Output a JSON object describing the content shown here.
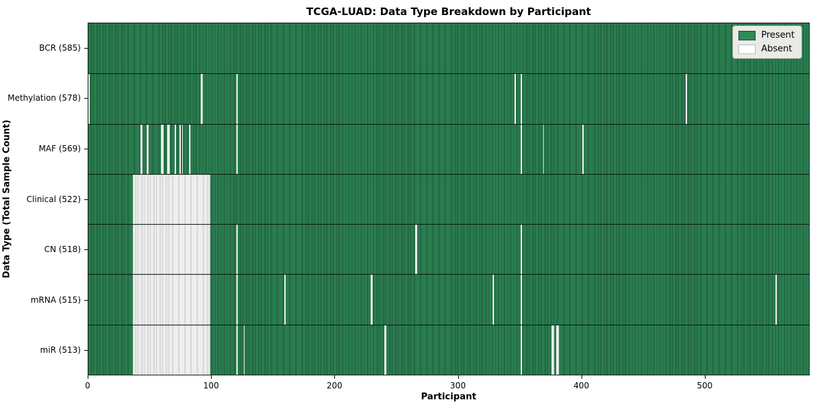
{
  "figure": {
    "title": "TCGA-LUAD: Data Type Breakdown by Participant",
    "xlabel": "Participant",
    "ylabel": "Data Type (Total Sample Count)"
  },
  "legend": {
    "items": [
      {
        "label": "Present",
        "color": "#2e8b57",
        "edge": "#1c4f36"
      },
      {
        "label": "Absent",
        "color": "#ffffff",
        "edge": "#bcbcbc"
      }
    ]
  },
  "chart_data": {
    "type": "heatmap",
    "title": "TCGA-LUAD: Data Type Breakdown by Participant",
    "xlabel": "Participant",
    "ylabel": "Data Type (Total Sample Count)",
    "legend_position": "upper right",
    "x_ticks": [
      0,
      100,
      200,
      300,
      400,
      500
    ],
    "xlim": [
      0,
      585
    ],
    "n_participants": 585,
    "colors": {
      "present_fill": "#2e8b57",
      "present_edge": "#1c4f36",
      "absent_fill": "#ffffff",
      "absent_edge": "#bcbcbc",
      "row_divider": "#000000"
    },
    "rows": [
      {
        "label": "BCR (585)",
        "data_type": "BCR",
        "present_count": 585,
        "absent_count": 0,
        "absent_ranges": []
      },
      {
        "label": "Methylation (578)",
        "data_type": "Methylation",
        "present_count": 578,
        "absent_count": 7,
        "absent_ranges": [
          [
            0,
            1
          ],
          [
            91,
            2
          ],
          [
            120,
            1
          ],
          [
            346,
            1
          ],
          [
            351,
            1
          ],
          [
            485,
            1
          ]
        ]
      },
      {
        "label": "MAF (569)",
        "data_type": "MAF",
        "present_count": 569,
        "absent_count": 16,
        "absent_ranges": [
          [
            42,
            2
          ],
          [
            47,
            2
          ],
          [
            59,
            2
          ],
          [
            64,
            2
          ],
          [
            70,
            1
          ],
          [
            74,
            1
          ],
          [
            76,
            1
          ],
          [
            82,
            1
          ],
          [
            120,
            1
          ],
          [
            351,
            1
          ],
          [
            369,
            1
          ],
          [
            401,
            1
          ]
        ]
      },
      {
        "label": "Clinical (522)",
        "data_type": "Clinical",
        "present_count": 522,
        "absent_count": 63,
        "absent_ranges": [
          [
            36,
            63
          ]
        ]
      },
      {
        "label": "CN (518)",
        "data_type": "CN",
        "present_count": 518,
        "absent_count": 67,
        "absent_ranges": [
          [
            36,
            63
          ],
          [
            120,
            1
          ],
          [
            265,
            2
          ],
          [
            351,
            1
          ]
        ]
      },
      {
        "label": "mRNA (515)",
        "data_type": "mRNA",
        "present_count": 515,
        "absent_count": 70,
        "absent_ranges": [
          [
            36,
            63
          ],
          [
            120,
            1
          ],
          [
            159,
            1
          ],
          [
            229,
            2
          ],
          [
            328,
            1
          ],
          [
            351,
            1
          ],
          [
            558,
            1
          ]
        ]
      },
      {
        "label": "miR (513)",
        "data_type": "miR",
        "present_count": 513,
        "absent_count": 72,
        "absent_ranges": [
          [
            36,
            63
          ],
          [
            120,
            1
          ],
          [
            126,
            1
          ],
          [
            240,
            2
          ],
          [
            351,
            1
          ],
          [
            376,
            2
          ],
          [
            380,
            2
          ]
        ]
      }
    ]
  }
}
